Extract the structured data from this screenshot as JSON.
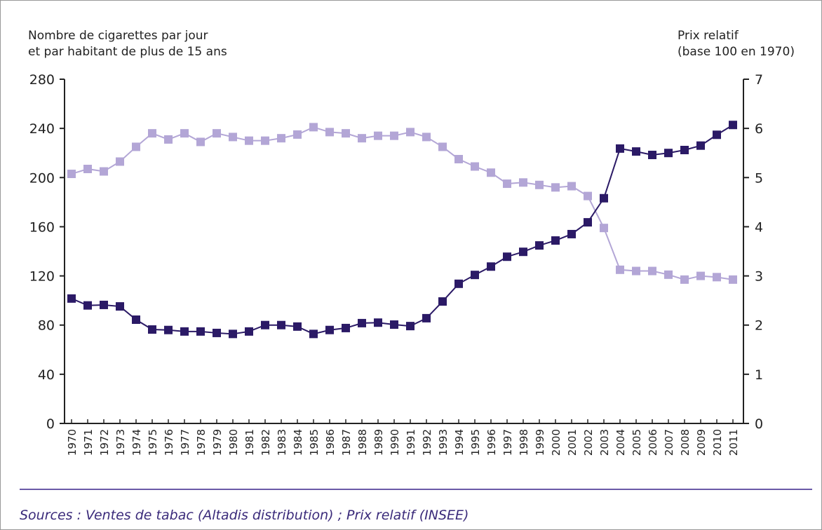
{
  "chart_data": {
    "type": "line",
    "y_label": [
      "Nombre de cigarettes par jour",
      "et par habitant de plus de 15 ans"
    ],
    "y2_label": [
      "Prix relatif",
      "(base 100 en 1970)"
    ],
    "source": "Sources : Ventes de tabac (Altadis distribution) ; Prix relatif (INSEE)",
    "categories": [
      "1970",
      "1971",
      "1972",
      "1973",
      "1974",
      "1975",
      "1976",
      "1977",
      "1978",
      "1979",
      "1980",
      "1981",
      "1982",
      "1983",
      "1984",
      "1985",
      "1986",
      "1987",
      "1988",
      "1989",
      "1990",
      "1991",
      "1992",
      "1993",
      "1994",
      "1995",
      "1996",
      "1997",
      "1998",
      "1999",
      "2000",
      "2001",
      "2002",
      "2003",
      "2004",
      "2005",
      "2006",
      "2007",
      "2008",
      "2009",
      "2010",
      "2011"
    ],
    "series": [
      {
        "color": "#b3a6d6",
        "marker": "square",
        "values": [
          203,
          207,
          205,
          213,
          225,
          236,
          231,
          236,
          229,
          236,
          233,
          230,
          230,
          232,
          235,
          241,
          237,
          236,
          232,
          234,
          234,
          237,
          233,
          225,
          215,
          209,
          204,
          195,
          196,
          194,
          192,
          193,
          185,
          159,
          125,
          124,
          124,
          121,
          117,
          120,
          119,
          117
        ]
      },
      {
        "color": "#2b1a66",
        "marker": "square",
        "axis": "y2",
        "values": [
          2.54,
          2.4,
          2.41,
          2.38,
          2.11,
          1.91,
          1.9,
          1.87,
          1.87,
          1.84,
          1.82,
          1.87,
          2.0,
          2.0,
          1.97,
          1.82,
          1.9,
          1.94,
          2.04,
          2.05,
          2.01,
          1.98,
          2.14,
          2.48,
          2.84,
          3.02,
          3.19,
          3.39,
          3.49,
          3.62,
          3.72,
          3.85,
          4.09,
          4.58,
          5.59,
          5.53,
          5.46,
          5.5,
          5.56,
          5.65,
          5.87,
          6.07
        ]
      }
    ],
    "ylim": [
      0,
      280
    ],
    "yticks": [
      0,
      40,
      80,
      120,
      160,
      200,
      240,
      280
    ],
    "y2lim": [
      0,
      7
    ],
    "y2ticks": [
      0,
      1,
      2,
      3,
      4,
      5,
      6,
      7
    ],
    "grid": false
  }
}
